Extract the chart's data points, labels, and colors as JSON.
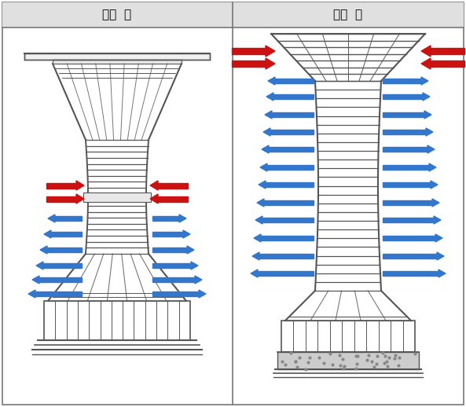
{
  "title_left": "밖경  전",
  "title_right": "밖경  후",
  "bg_color": "#ffffff",
  "header_color": "#e0e0e0",
  "border_color": "#777777",
  "line_color": "#555555",
  "red_arrow_color": "#cc1111",
  "blue_arrow_color": "#3377cc",
  "fig_width": 5.93,
  "fig_height": 5.18
}
